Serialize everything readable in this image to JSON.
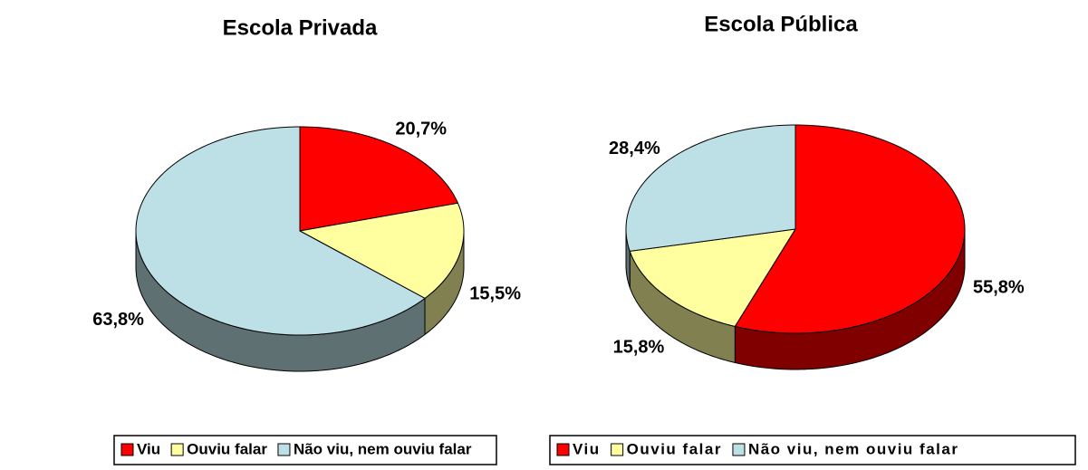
{
  "chart_data": [
    {
      "type": "pie3d",
      "title": "Escola Privada",
      "categories": [
        "Viu",
        "Ouviu falar",
        "Não viu, nem ouviu falar"
      ],
      "values": [
        20.7,
        15.5,
        63.8
      ],
      "value_labels": [
        "20,7%",
        "15,5%",
        "63,8%"
      ],
      "colors": [
        "#ff0000",
        "#ffffa0",
        "#bde0e6"
      ]
    },
    {
      "type": "pie3d",
      "title": "Escola Pública",
      "categories": [
        "Viu",
        "Ouviu falar",
        "Não viu, nem ouviu falar"
      ],
      "values": [
        55.8,
        15.8,
        28.4
      ],
      "value_labels": [
        "55,8%",
        "15,8%",
        "28,4%"
      ],
      "colors": [
        "#ff0000",
        "#ffffa0",
        "#bde0e6"
      ]
    }
  ]
}
